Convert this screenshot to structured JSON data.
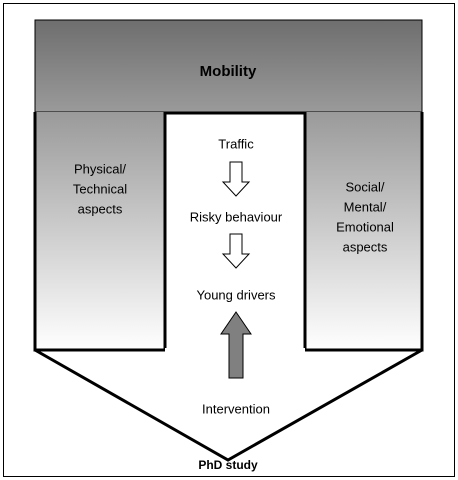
{
  "title": "Mobility",
  "left_aspects": [
    "Physical/",
    "Technical",
    "aspects"
  ],
  "right_aspects": [
    "Social/",
    "Mental/",
    "Emotional",
    "aspects"
  ],
  "flow": [
    "Traffic",
    "Risky behaviour",
    "Young drivers",
    "Intervention"
  ],
  "footer": "PhD study"
}
